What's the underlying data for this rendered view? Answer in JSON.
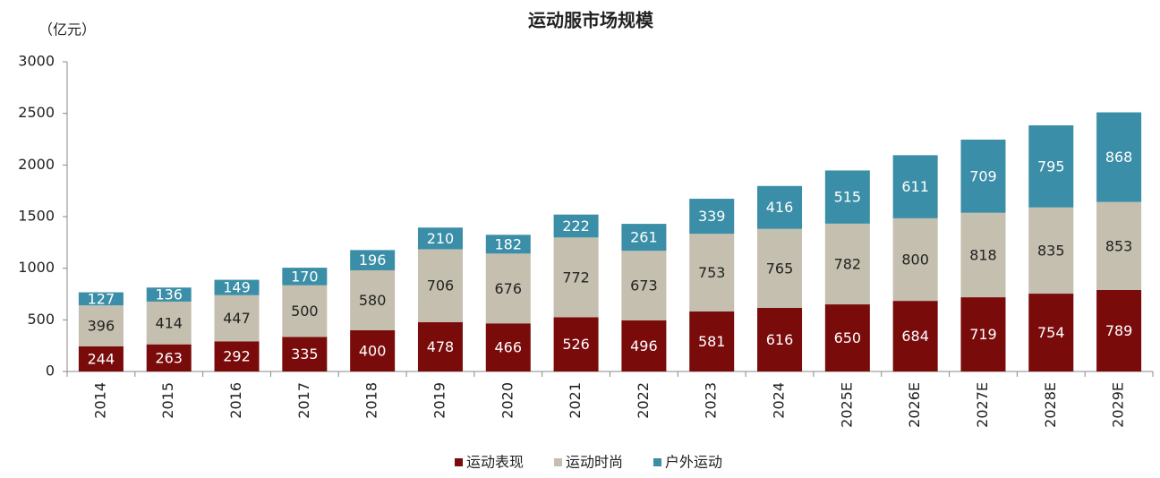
{
  "chart_data": {
    "type": "stacked-bar",
    "title": "运动服市场规模",
    "y_label": "（亿元）",
    "categories": [
      "2014",
      "2015",
      "2016",
      "2017",
      "2018",
      "2019",
      "2020",
      "2021",
      "2022",
      "2023",
      "2024",
      "2025E",
      "2026E",
      "2027E",
      "2028E",
      "2029E"
    ],
    "series": [
      {
        "name": "运动表现",
        "color": "#7a0b0b",
        "values": [
          244,
          263,
          292,
          335,
          400,
          478,
          466,
          526,
          496,
          581,
          616,
          650,
          684,
          719,
          754,
          789
        ]
      },
      {
        "name": "运动时尚",
        "color": "#c4bfae",
        "values": [
          396,
          414,
          447,
          500,
          580,
          706,
          676,
          772,
          673,
          753,
          765,
          782,
          800,
          818,
          835,
          853
        ]
      },
      {
        "name": "户外运动",
        "color": "#3b8ea7",
        "values": [
          127,
          136,
          149,
          170,
          196,
          210,
          182,
          222,
          261,
          339,
          416,
          515,
          611,
          709,
          795,
          868
        ]
      }
    ],
    "ylim": [
      0,
      3000
    ],
    "yticks": [
      0,
      500,
      1000,
      1500,
      2000,
      2500,
      3000
    ],
    "legend": "bottom"
  }
}
